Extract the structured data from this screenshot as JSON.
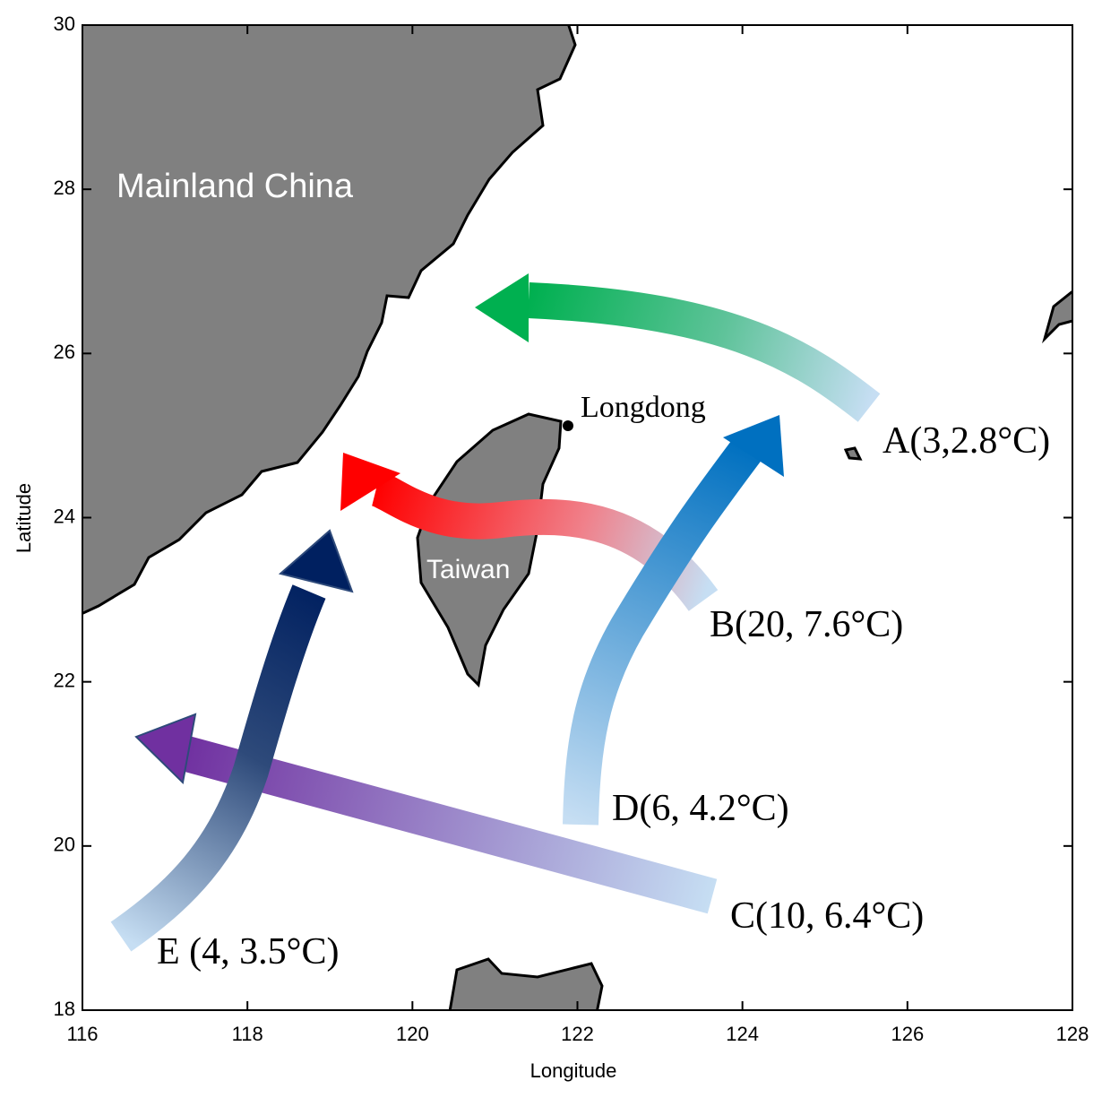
{
  "map": {
    "xlabel": "Longitude",
    "ylabel": "Latitude",
    "xlim": [
      116,
      128
    ],
    "ylim": [
      18,
      30
    ],
    "xticks": [
      116,
      118,
      120,
      122,
      124,
      126,
      128
    ],
    "yticks": [
      18,
      20,
      22,
      24,
      26,
      28,
      30
    ],
    "labels": {
      "mainland": "Mainland China",
      "taiwan": "Taiwan",
      "longdong": "Longdong"
    },
    "routes": [
      {
        "label": "A(3,2.8°C)"
      },
      {
        "label": "B(20, 7.6°C)"
      },
      {
        "label": "C(10, 6.4°C)"
      },
      {
        "label": "D(6, 4.2°C)"
      },
      {
        "label": "E (4, 3.5°C)"
      }
    ]
  }
}
